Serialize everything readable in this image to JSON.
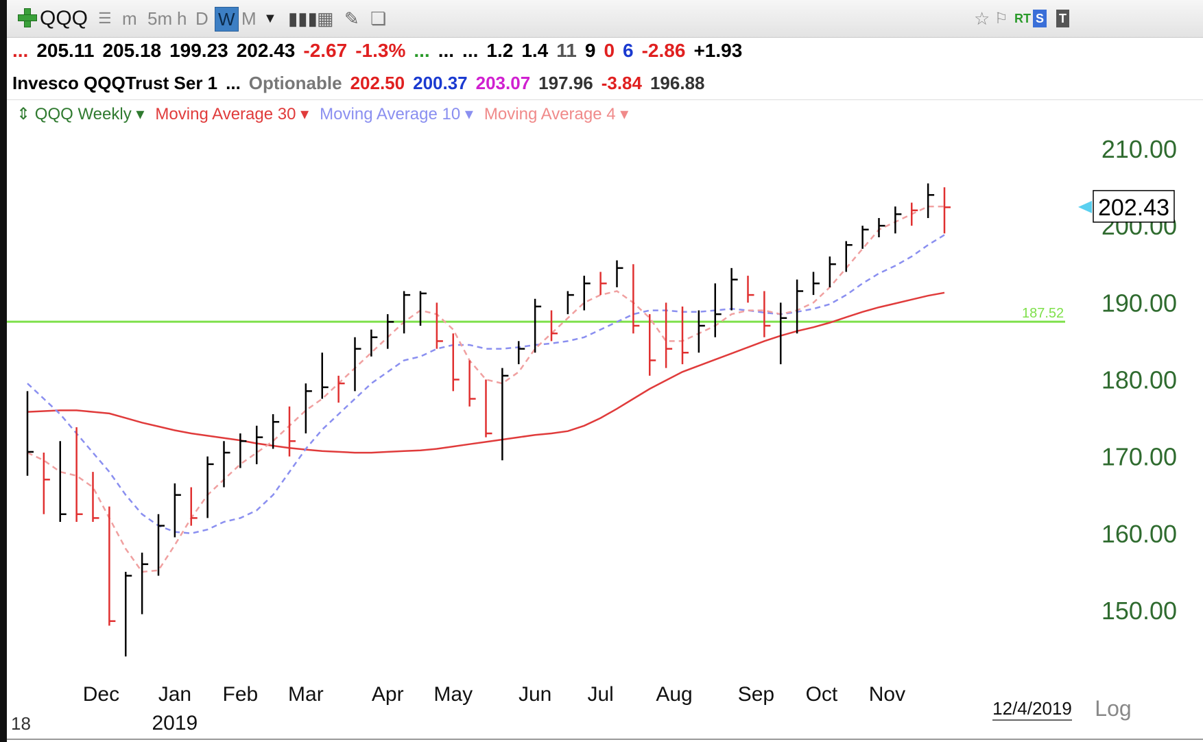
{
  "toolbar": {
    "symbol": "QQQ",
    "timeframes": [
      "m",
      "5m",
      "h",
      "D",
      "W",
      "M"
    ],
    "active_timeframe": "W",
    "right_badges": [
      "RT",
      "S",
      "T"
    ]
  },
  "quote_row1": [
    {
      "text": "...",
      "color": "#d22"
    },
    {
      "text": "205.11",
      "color": "#000"
    },
    {
      "text": "205.18",
      "color": "#000"
    },
    {
      "text": "199.23",
      "color": "#000"
    },
    {
      "text": "202.43",
      "color": "#000"
    },
    {
      "text": "-2.67",
      "color": "#e02020"
    },
    {
      "text": "-1.3%",
      "color": "#e02020"
    },
    {
      "text": "...",
      "color": "#2a9a2a"
    },
    {
      "text": "...",
      "color": "#000"
    },
    {
      "text": "...",
      "color": "#000"
    },
    {
      "text": "1.2",
      "color": "#000"
    },
    {
      "text": "1.4",
      "color": "#000"
    },
    {
      "text": "11",
      "color": "#555"
    },
    {
      "text": "9",
      "color": "#000"
    },
    {
      "text": "0",
      "color": "#e02020"
    },
    {
      "text": "6",
      "color": "#1a3ad0"
    },
    {
      "text": "-2.86",
      "color": "#e02020"
    },
    {
      "text": "+1.93",
      "color": "#000"
    }
  ],
  "quote_row2": [
    {
      "text": "Invesco QQQTrust Ser 1",
      "color": "#000"
    },
    {
      "text": "...",
      "color": "#000"
    },
    {
      "text": "Optionable",
      "color": "#777"
    },
    {
      "text": "202.50",
      "color": "#e02020"
    },
    {
      "text": "200.37",
      "color": "#1a3ad0"
    },
    {
      "text": "203.07",
      "color": "#d020d0"
    },
    {
      "text": "197.96",
      "color": "#333"
    },
    {
      "text": "-3.84",
      "color": "#e02020"
    },
    {
      "text": "196.88",
      "color": "#333"
    }
  ],
  "legend": [
    {
      "label": "QQQ Weekly",
      "color": "#2f7a2f"
    },
    {
      "label": "Moving Average 30",
      "color": "#e03b3b"
    },
    {
      "label": "Moving Average 10",
      "color": "#8a8ff0"
    },
    {
      "label": "Moving Average 4",
      "color": "#f08a8a"
    }
  ],
  "chart_data": {
    "type": "ohlc-bar",
    "symbol": "QQQ",
    "interval": "Weekly",
    "y_axis": {
      "ticks": [
        150,
        160,
        170,
        180,
        190,
        200,
        210
      ],
      "labels": [
        "150.00",
        "160.00",
        "170.00",
        "180.00",
        "190.00",
        "200.00",
        "210.00"
      ]
    },
    "x_axis": {
      "labels": [
        "Dec",
        "Jan",
        "Feb",
        "Mar",
        "Apr",
        "May",
        "Jun",
        "Jul",
        "Aug",
        "Sep",
        "Oct",
        "Nov"
      ],
      "year_label": "2019",
      "left_label": "18",
      "cursor_date": "12/4/2019"
    },
    "last_price": {
      "label": "202.43",
      "value": 202.43
    },
    "horizontal_line": {
      "value": 187.52,
      "label": "187.52",
      "color": "#7ee04a"
    },
    "log_toggle_label": "Log",
    "bars": [
      {
        "h": 178.5,
        "l": 167.5,
        "c": 170.6,
        "up": true
      },
      {
        "h": 170.5,
        "l": 162.5,
        "c": 167.0,
        "up": false
      },
      {
        "h": 172.0,
        "l": 161.5,
        "c": 162.5,
        "up": true
      },
      {
        "h": 173.8,
        "l": 161.5,
        "c": 162.5,
        "up": false
      },
      {
        "h": 168.0,
        "l": 161.5,
        "c": 162.0,
        "up": false
      },
      {
        "h": 163.5,
        "l": 148.0,
        "c": 148.6,
        "up": false
      },
      {
        "h": 155.0,
        "l": 144.0,
        "c": 154.5,
        "up": true
      },
      {
        "h": 157.5,
        "l": 149.5,
        "c": 156.0,
        "up": true
      },
      {
        "h": 162.5,
        "l": 154.5,
        "c": 161.0,
        "up": true
      },
      {
        "h": 166.5,
        "l": 159.5,
        "c": 165.0,
        "up": true
      },
      {
        "h": 166.0,
        "l": 161.0,
        "c": 162.0,
        "up": false
      },
      {
        "h": 170.0,
        "l": 162.0,
        "c": 169.0,
        "up": true
      },
      {
        "h": 172.0,
        "l": 166.0,
        "c": 170.5,
        "up": true
      },
      {
        "h": 173.0,
        "l": 168.5,
        "c": 172.0,
        "up": true
      },
      {
        "h": 174.0,
        "l": 169.0,
        "c": 172.5,
        "up": true
      },
      {
        "h": 175.5,
        "l": 171.0,
        "c": 174.5,
        "up": true
      },
      {
        "h": 176.5,
        "l": 170.0,
        "c": 172.0,
        "up": false
      },
      {
        "h": 179.5,
        "l": 173.0,
        "c": 178.5,
        "up": true
      },
      {
        "h": 183.5,
        "l": 177.5,
        "c": 179.0,
        "up": true
      },
      {
        "h": 180.5,
        "l": 177.0,
        "c": 179.5,
        "up": false
      },
      {
        "h": 185.5,
        "l": 178.5,
        "c": 184.0,
        "up": true
      },
      {
        "h": 186.5,
        "l": 183.0,
        "c": 185.5,
        "up": true
      },
      {
        "h": 188.5,
        "l": 184.0,
        "c": 187.5,
        "up": true
      },
      {
        "h": 191.5,
        "l": 186.0,
        "c": 191.0,
        "up": true
      },
      {
        "h": 191.5,
        "l": 187.0,
        "c": 191.2,
        "up": true
      },
      {
        "h": 190.0,
        "l": 184.0,
        "c": 185.0,
        "up": false
      },
      {
        "h": 186.0,
        "l": 178.5,
        "c": 180.0,
        "up": false
      },
      {
        "h": 182.5,
        "l": 176.5,
        "c": 177.5,
        "up": false
      },
      {
        "h": 180.0,
        "l": 172.5,
        "c": 173.0,
        "up": false
      },
      {
        "h": 181.5,
        "l": 169.5,
        "c": 180.5,
        "up": true
      },
      {
        "h": 185.0,
        "l": 182.0,
        "c": 184.0,
        "up": true
      },
      {
        "h": 190.5,
        "l": 183.5,
        "c": 189.5,
        "up": true
      },
      {
        "h": 189.0,
        "l": 185.0,
        "c": 186.0,
        "up": false
      },
      {
        "h": 191.5,
        "l": 188.5,
        "c": 191.0,
        "up": true
      },
      {
        "h": 193.5,
        "l": 189.0,
        "c": 192.5,
        "up": true
      },
      {
        "h": 194.0,
        "l": 191.0,
        "c": 192.5,
        "up": false
      },
      {
        "h": 195.5,
        "l": 192.0,
        "c": 194.5,
        "up": true
      },
      {
        "h": 195.0,
        "l": 186.0,
        "c": 187.0,
        "up": false
      },
      {
        "h": 188.5,
        "l": 180.5,
        "c": 182.5,
        "up": false
      },
      {
        "h": 190.0,
        "l": 181.5,
        "c": 184.0,
        "up": false
      },
      {
        "h": 189.5,
        "l": 182.0,
        "c": 183.5,
        "up": false
      },
      {
        "h": 189.0,
        "l": 183.5,
        "c": 187.0,
        "up": true
      },
      {
        "h": 192.5,
        "l": 185.5,
        "c": 188.5,
        "up": true
      },
      {
        "h": 194.5,
        "l": 189.0,
        "c": 193.0,
        "up": true
      },
      {
        "h": 193.5,
        "l": 190.0,
        "c": 191.0,
        "up": false
      },
      {
        "h": 191.5,
        "l": 185.5,
        "c": 187.0,
        "up": false
      },
      {
        "h": 190.0,
        "l": 182.0,
        "c": 188.0,
        "up": true
      },
      {
        "h": 193.0,
        "l": 186.0,
        "c": 191.5,
        "up": true
      },
      {
        "h": 194.0,
        "l": 191.0,
        "c": 192.5,
        "up": true
      },
      {
        "h": 196.0,
        "l": 192.0,
        "c": 195.0,
        "up": true
      },
      {
        "h": 198.0,
        "l": 194.0,
        "c": 197.5,
        "up": true
      },
      {
        "h": 200.0,
        "l": 197.0,
        "c": 199.5,
        "up": true
      },
      {
        "h": 201.0,
        "l": 198.5,
        "c": 200.0,
        "up": true
      },
      {
        "h": 202.5,
        "l": 199.0,
        "c": 201.5,
        "up": true
      },
      {
        "h": 203.0,
        "l": 200.0,
        "c": 202.0,
        "up": false
      },
      {
        "h": 205.5,
        "l": 201.0,
        "c": 204.0,
        "up": true
      },
      {
        "h": 205.0,
        "l": 199.0,
        "c": 202.4,
        "up": false
      }
    ],
    "ma30": [
      175.8,
      175.9,
      176.0,
      176.0,
      175.8,
      175.6,
      175.0,
      174.4,
      173.9,
      173.4,
      173.0,
      172.7,
      172.4,
      172.1,
      171.7,
      171.4,
      171.1,
      170.9,
      170.7,
      170.6,
      170.5,
      170.5,
      170.6,
      170.7,
      170.8,
      171.0,
      171.3,
      171.6,
      171.9,
      172.2,
      172.5,
      172.8,
      173.0,
      173.3,
      174.0,
      175.0,
      176.2,
      177.5,
      178.8,
      179.9,
      181.0,
      181.8,
      182.6,
      183.4,
      184.2,
      185.0,
      185.7,
      186.3,
      186.8,
      187.4,
      188.1,
      188.8,
      189.4,
      189.9,
      190.4,
      190.9,
      191.3
    ],
    "ma10": [
      179.5,
      177.5,
      175.5,
      173.0,
      170.5,
      168.0,
      165.0,
      162.5,
      161.0,
      160.2,
      160.0,
      160.5,
      161.5,
      162.0,
      163.0,
      165.0,
      168.0,
      171.0,
      173.5,
      175.5,
      177.5,
      179.5,
      181.0,
      182.5,
      183.0,
      184.0,
      184.5,
      184.5,
      184.0,
      184.0,
      184.2,
      184.5,
      184.7,
      185.0,
      185.5,
      186.5,
      187.5,
      188.5,
      189.0,
      189.0,
      188.8,
      188.8,
      189.0,
      189.2,
      189.0,
      188.7,
      188.5,
      188.8,
      189.2,
      189.8,
      191.0,
      192.5,
      193.8,
      194.8,
      196.0,
      197.5,
      198.8
    ],
    "ma4": [
      170.5,
      169.5,
      168.0,
      167.5,
      166.0,
      162.0,
      158.0,
      155.0,
      155.2,
      158.5,
      162.0,
      165.0,
      167.0,
      169.0,
      170.5,
      172.0,
      174.0,
      176.0,
      177.5,
      179.5,
      181.5,
      183.5,
      185.5,
      187.5,
      189.0,
      188.5,
      186.5,
      182.5,
      180.0,
      179.5,
      181.0,
      184.0,
      186.0,
      188.0,
      190.0,
      191.0,
      191.5,
      190.0,
      188.0,
      185.0,
      185.0,
      186.0,
      187.0,
      188.5,
      189.0,
      189.0,
      188.5,
      189.0,
      190.0,
      192.0,
      194.5,
      197.0,
      199.5,
      200.5,
      201.5,
      202.5,
      202.5
    ],
    "colors": {
      "up": "#000000",
      "down": "#e03030",
      "ma30": "#e03b3b",
      "ma10": "#8a8ff0",
      "ma4": "#f0a0a0",
      "axis_text": "#2f6b2f"
    }
  }
}
